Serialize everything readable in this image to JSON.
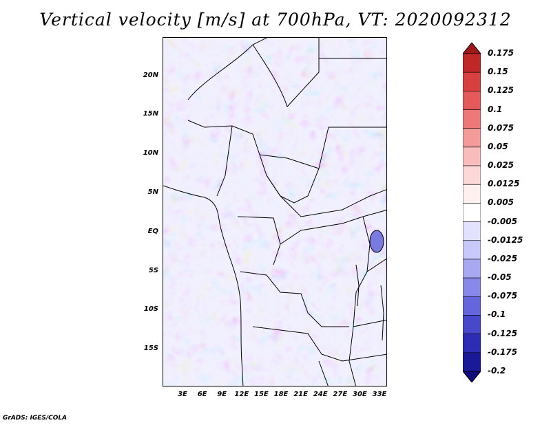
{
  "title": "Vertical velocity [m/s] at 700hPa, VT: 2020092312",
  "footer": "GrADS: IGES/COLA",
  "map": {
    "lat_labels": [
      "20N",
      "15N",
      "10N",
      "5N",
      "EQ",
      "5S",
      "10S",
      "15S"
    ],
    "lon_labels": [
      "3E",
      "6E",
      "9E",
      "12E",
      "15E",
      "18E",
      "21E",
      "24E",
      "27E",
      "30E",
      "33E"
    ]
  },
  "colorbar": {
    "levels": [
      "0.175",
      "0.15",
      "0.125",
      "0.1",
      "0.075",
      "0.05",
      "0.025",
      "0.0125",
      "0.005",
      "-0.005",
      "-0.0125",
      "-0.025",
      "-0.05",
      "-0.075",
      "-0.1",
      "-0.125",
      "-0.175",
      "-0.2"
    ],
    "colors": [
      "#a01818",
      "#c02828",
      "#d84040",
      "#e45a5a",
      "#ec7878",
      "#f49a9a",
      "#f8bcbc",
      "#fcd8d8",
      "#fff0f0",
      "#ffffff",
      "#e2e2ff",
      "#c8c8fa",
      "#a8a8f2",
      "#8888ea",
      "#6666dc",
      "#4848cc",
      "#2c2cb4",
      "#1a1a98",
      "#100a7a"
    ]
  }
}
